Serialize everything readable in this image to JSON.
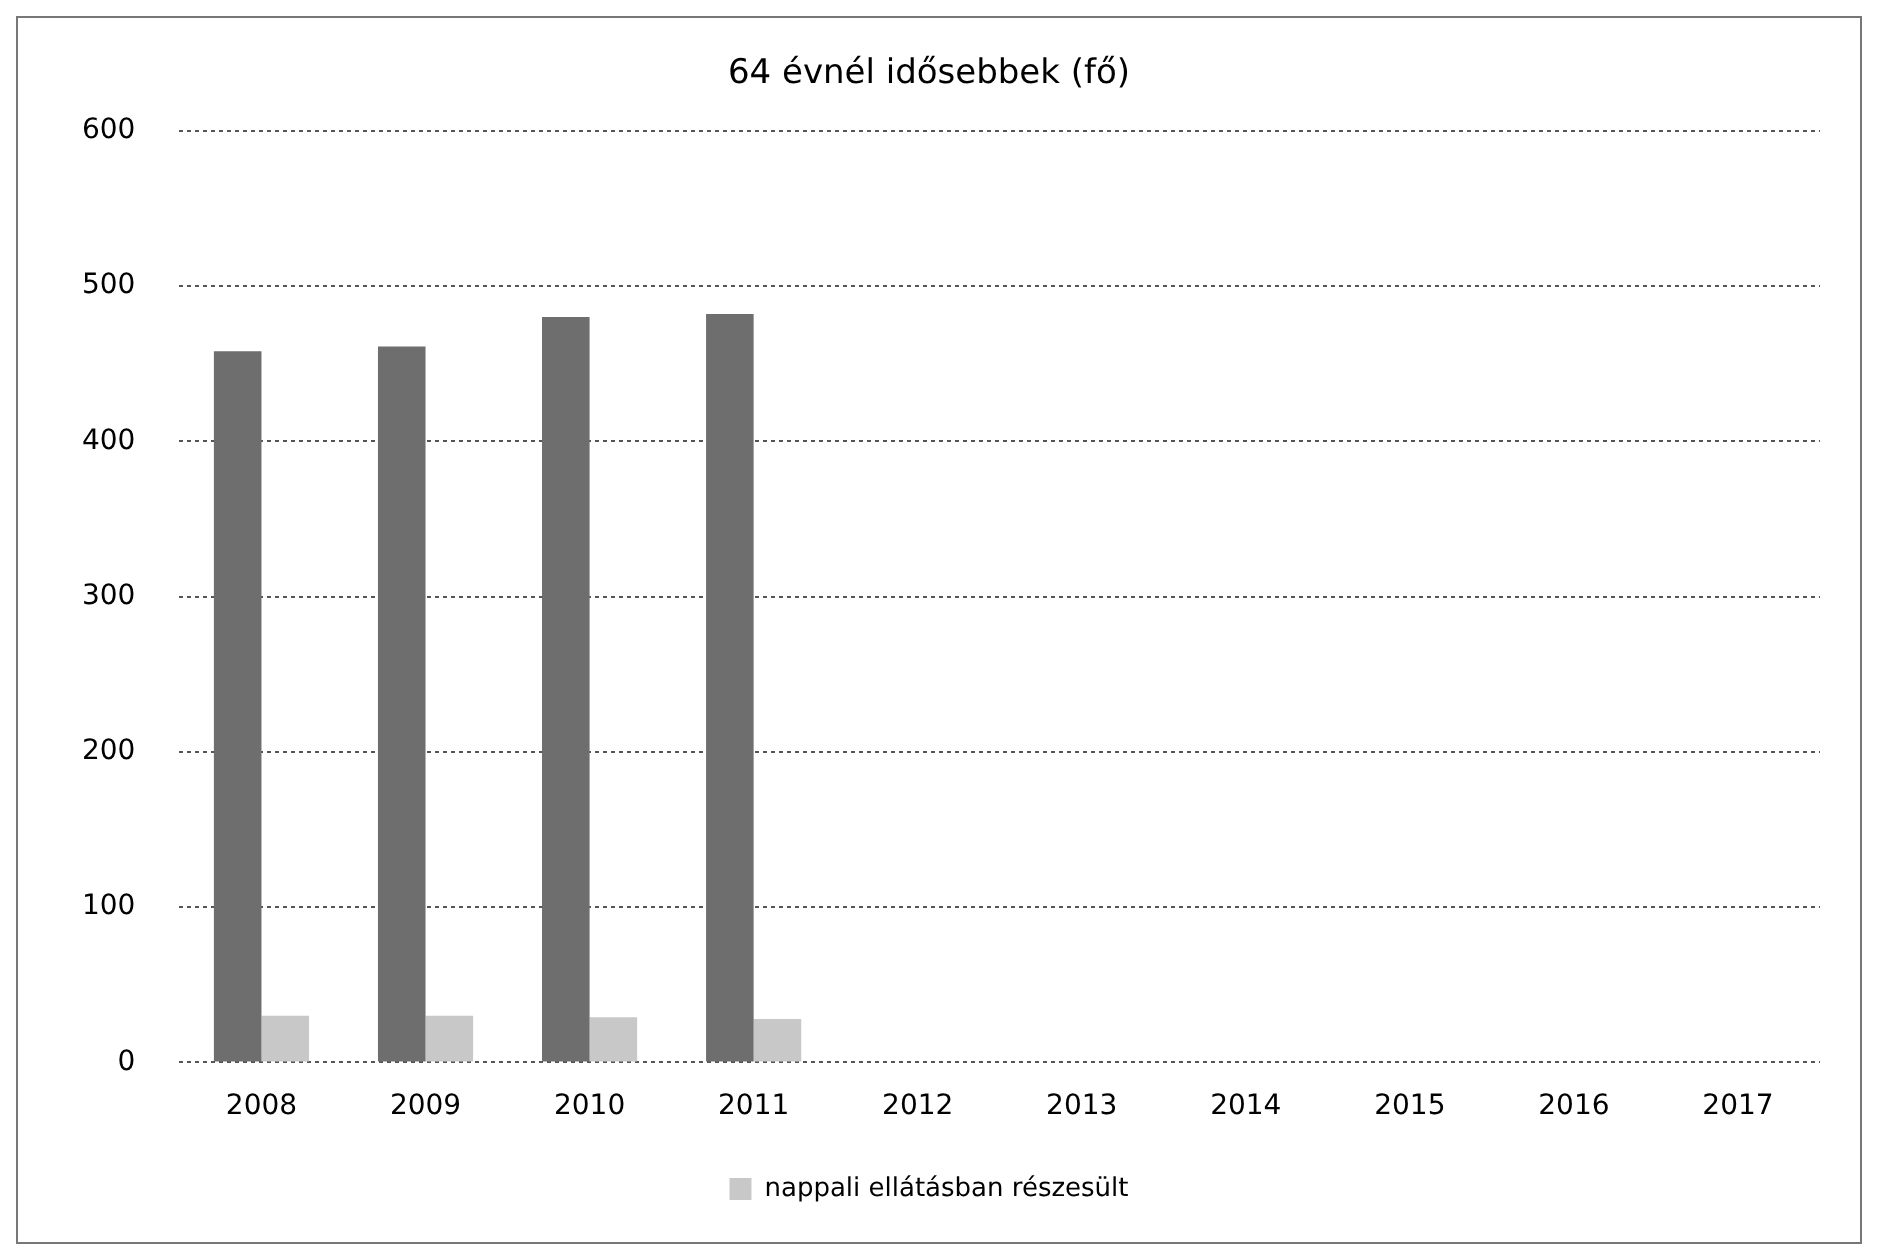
{
  "chart_data": {
    "type": "bar",
    "title": "64 évnél idősebbek (fő)",
    "categories": [
      "2008",
      "2009",
      "2010",
      "2011",
      "2012",
      "2013",
      "2014",
      "2015",
      "2016",
      "2017"
    ],
    "series": [
      {
        "color": "#6e6e6e",
        "values": [
          458,
          461,
          480,
          482,
          null,
          null,
          null,
          null,
          null,
          null
        ]
      },
      {
        "name": "nappali ellátásban részesült",
        "color": "#c8c8c8",
        "values": [
          30,
          30,
          29,
          28,
          null,
          null,
          null,
          null,
          null,
          null
        ]
      }
    ],
    "ylim": [
      0,
      600
    ],
    "yticks": [
      0,
      100,
      200,
      300,
      400,
      500,
      600
    ],
    "grid": "y",
    "legend": "bottom"
  }
}
